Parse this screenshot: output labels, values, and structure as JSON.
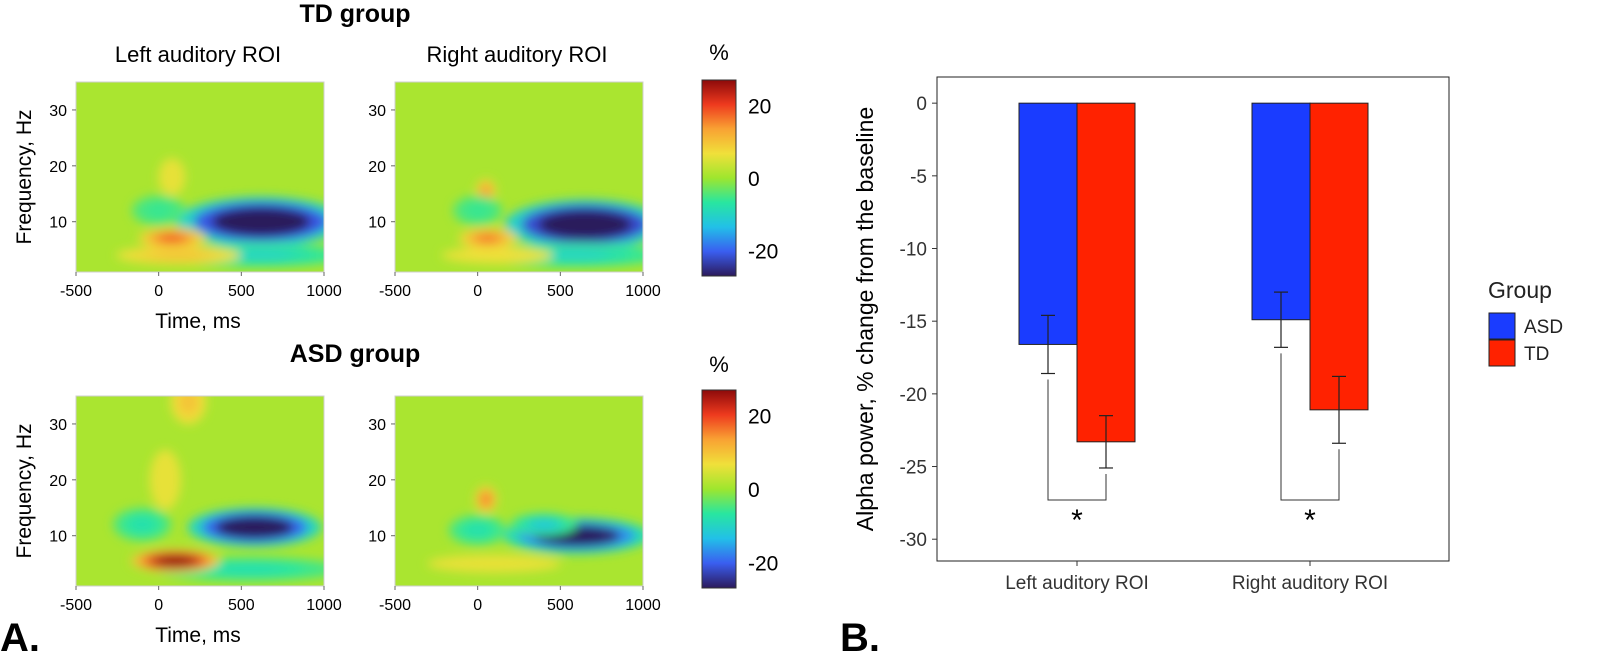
{
  "panel_labels": {
    "a": "A.",
    "b": "B."
  },
  "colors": {
    "asd": "#1a3cff",
    "td": "#ff2200",
    "colormap": [
      "#2c1a5c",
      "#3a5ef0",
      "#22c0e8",
      "#28e6a0",
      "#9ee62e",
      "#f0e03a",
      "#f9a233",
      "#ee3a1e",
      "#8c0a0a"
    ]
  },
  "chart_data": [
    {
      "type": "heatmap",
      "panel": "A",
      "group_titles": [
        "TD group",
        "ASD group"
      ],
      "roi_titles": [
        "Left auditory ROI",
        "Right auditory ROI"
      ],
      "ylabel": "Frequency, Hz",
      "xlabel": "Time, ms",
      "xlim": [
        -500,
        1000
      ],
      "ylim": [
        1,
        35
      ],
      "xticks": [
        "-500",
        "0",
        "500",
        "1000"
      ],
      "yticks": [
        "10",
        "20",
        "30"
      ],
      "colorbar": {
        "title": "%",
        "range": [
          -27,
          27
        ],
        "ticks": [
          "20",
          "0",
          "-20"
        ]
      },
      "maps": [
        {
          "group": "TD",
          "roi": "Left",
          "features": [
            {
              "t": 620,
              "f": 10,
              "dt": 380,
              "df": 3.3,
              "v": -46
            },
            {
              "t": 600,
              "f": 4,
              "dt": 420,
              "df": 1.6,
              "v": -10
            },
            {
              "t": 80,
              "f": 7,
              "dt": 150,
              "df": 1.4,
              "v": 18
            },
            {
              "t": 120,
              "f": 4,
              "dt": 280,
              "df": 1.2,
              "v": 10
            },
            {
              "t": 80,
              "f": 18,
              "dt": 60,
              "df": 2.5,
              "v": 6
            },
            {
              "t": 0,
              "f": 12,
              "dt": 120,
              "df": 2,
              "v": -6
            }
          ]
        },
        {
          "group": "TD",
          "roi": "Right",
          "features": [
            {
              "t": 650,
              "f": 9.5,
              "dt": 360,
              "df": 3.3,
              "v": -48
            },
            {
              "t": 580,
              "f": 4,
              "dt": 420,
              "df": 1.6,
              "v": -10
            },
            {
              "t": 60,
              "f": 7,
              "dt": 130,
              "df": 1.4,
              "v": 16
            },
            {
              "t": 50,
              "f": 15.5,
              "dt": 45,
              "df": 1.6,
              "v": 14
            },
            {
              "t": 120,
              "f": 4,
              "dt": 250,
              "df": 1.1,
              "v": 7
            },
            {
              "t": 0,
              "f": 12,
              "dt": 110,
              "df": 2,
              "v": -6
            }
          ]
        },
        {
          "group": "ASD",
          "roi": "Left",
          "features": [
            {
              "t": 580,
              "f": 11.5,
              "dt": 300,
              "df": 2.6,
              "v": -42
            },
            {
              "t": 550,
              "f": 4,
              "dt": 420,
              "df": 1.6,
              "v": -8
            },
            {
              "t": 100,
              "f": 5.5,
              "dt": 200,
              "df": 1.5,
              "v": 32
            },
            {
              "t": 180,
              "f": 34,
              "dt": 80,
              "df": 3,
              "v": 10
            },
            {
              "t": 40,
              "f": 20,
              "dt": 70,
              "df": 4,
              "v": 6
            },
            {
              "t": -100,
              "f": 12,
              "dt": 130,
              "df": 2.2,
              "v": -8
            }
          ]
        },
        {
          "group": "ASD",
          "roi": "Right",
          "features": [
            {
              "t": 600,
              "f": 10,
              "dt": 330,
              "df": 2.4,
              "v": -36
            },
            {
              "t": 400,
              "f": 12,
              "dt": 150,
              "df": 1.5,
              "v": -12
            },
            {
              "t": 50,
              "f": 16.5,
              "dt": 50,
              "df": 1.8,
              "v": 16
            },
            {
              "t": 100,
              "f": 5,
              "dt": 300,
              "df": 1.2,
              "v": 6
            },
            {
              "t": 0,
              "f": 11,
              "dt": 130,
              "df": 2,
              "v": -8
            }
          ]
        }
      ]
    },
    {
      "type": "bar",
      "panel": "B",
      "categories": [
        "Left auditory ROI",
        "Right auditory ROI"
      ],
      "series": [
        {
          "name": "ASD",
          "values": [
            -16.6,
            -14.9
          ],
          "errors": [
            2.0,
            1.9
          ]
        },
        {
          "name": "TD",
          "values": [
            -23.3,
            -21.1
          ],
          "errors": [
            1.8,
            2.3
          ]
        }
      ],
      "ylabel": "Alpha power, % change from the baseline",
      "yticks": [
        "0",
        "-5",
        "-10",
        "-15",
        "-20",
        "-25",
        "-30"
      ],
      "ylim": [
        -31.5,
        1.8
      ],
      "legend": {
        "title": "Group",
        "position": "right"
      },
      "significance": [
        "*",
        "*"
      ]
    }
  ]
}
